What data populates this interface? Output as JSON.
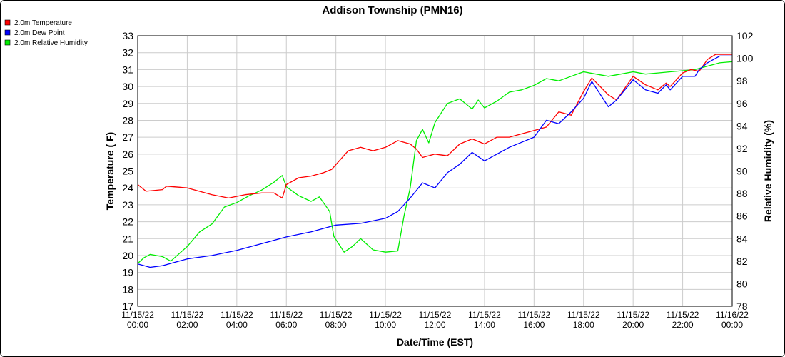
{
  "chart_data": {
    "type": "line",
    "title": "Addison Township (PMN16)",
    "xlabel": "Date/Time (EST)",
    "ylabel": "Temperature ( F)",
    "y2label": "Relative Humidity (%)",
    "ylim": [
      17,
      33
    ],
    "y2lim": [
      78,
      102
    ],
    "yticks": [
      17,
      18,
      19,
      20,
      21,
      22,
      23,
      24,
      25,
      26,
      27,
      28,
      29,
      30,
      31,
      32,
      33
    ],
    "y2ticks": [
      78,
      80,
      82,
      84,
      86,
      88,
      90,
      92,
      94,
      96,
      98,
      100,
      102
    ],
    "grid": true,
    "legend_placement": "top-left",
    "x_ticks": [
      {
        "date": "11/15/22",
        "time": "00:00"
      },
      {
        "date": "11/15/22",
        "time": "02:00"
      },
      {
        "date": "11/15/22",
        "time": "04:00"
      },
      {
        "date": "11/15/22",
        "time": "06:00"
      },
      {
        "date": "11/15/22",
        "time": "08:00"
      },
      {
        "date": "11/15/22",
        "time": "10:00"
      },
      {
        "date": "11/15/22",
        "time": "12:00"
      },
      {
        "date": "11/15/22",
        "time": "14:00"
      },
      {
        "date": "11/15/22",
        "time": "16:00"
      },
      {
        "date": "11/15/22",
        "time": "18:00"
      },
      {
        "date": "11/15/22",
        "time": "20:00"
      },
      {
        "date": "11/15/22",
        "time": "22:00"
      },
      {
        "date": "11/16/22",
        "time": "00:00"
      }
    ],
    "series": [
      {
        "name": "2.0m Temperature",
        "color": "#ff0000",
        "axis": "left",
        "x": [
          "11/15/22 00:00",
          "11/15/22 00:20",
          "11/15/22 01:00",
          "11/15/22 01:10",
          "11/15/22 02:00",
          "11/15/22 03:00",
          "11/15/22 03:40",
          "11/15/22 04:20",
          "11/15/22 05:00",
          "11/15/22 05:30",
          "11/15/22 05:50",
          "11/15/22 06:00",
          "11/15/22 06:30",
          "11/15/22 07:00",
          "11/15/22 07:30",
          "11/15/22 07:50",
          "11/15/22 08:30",
          "11/15/22 09:00",
          "11/15/22 09:30",
          "11/15/22 10:00",
          "11/15/22 10:30",
          "11/15/22 11:00",
          "11/15/22 11:15",
          "11/15/22 11:30",
          "11/15/22 12:00",
          "11/15/22 12:30",
          "11/15/22 13:00",
          "11/15/22 13:30",
          "11/15/22 14:00",
          "11/15/22 14:30",
          "11/15/22 15:00",
          "11/15/22 15:30",
          "11/15/22 16:00",
          "11/15/22 16:30",
          "11/15/22 17:00",
          "11/15/22 17:30",
          "11/15/22 18:00",
          "11/15/22 18:20",
          "11/15/22 19:00",
          "11/15/22 19:20",
          "11/15/22 20:00",
          "11/15/22 20:30",
          "11/15/22 21:00",
          "11/15/22 21:20",
          "11/15/22 21:30",
          "11/15/22 22:00",
          "11/15/22 22:20",
          "11/15/22 22:40",
          "11/15/22 23:00",
          "11/15/22 23:20",
          "11/15/22 23:40",
          "11/16/22 00:00"
        ],
        "values": [
          24.2,
          23.8,
          23.9,
          24.1,
          24.0,
          23.6,
          23.4,
          23.6,
          23.7,
          23.7,
          23.4,
          24.2,
          24.6,
          24.7,
          24.9,
          25.1,
          26.2,
          26.4,
          26.2,
          26.4,
          26.8,
          26.6,
          26.3,
          25.8,
          26.0,
          25.9,
          26.6,
          26.9,
          26.6,
          27.0,
          27.0,
          27.2,
          27.4,
          27.6,
          28.5,
          28.3,
          29.7,
          30.5,
          29.5,
          29.2,
          30.6,
          30.1,
          29.8,
          30.2,
          30.0,
          30.8,
          31.0,
          30.9,
          31.6,
          31.9,
          31.9,
          31.9
        ]
      },
      {
        "name": "2.0m Dew Point",
        "color": "#0000ff",
        "axis": "left",
        "x": [
          "11/15/22 00:00",
          "11/15/22 00:30",
          "11/15/22 01:00",
          "11/15/22 02:00",
          "11/15/22 03:00",
          "11/15/22 04:00",
          "11/15/22 05:00",
          "11/15/22 06:00",
          "11/15/22 07:00",
          "11/15/22 08:00",
          "11/15/22 09:00",
          "11/15/22 10:00",
          "11/15/22 10:30",
          "11/15/22 11:00",
          "11/15/22 11:30",
          "11/15/22 12:00",
          "11/15/22 12:30",
          "11/15/22 13:00",
          "11/15/22 13:30",
          "11/15/22 14:00",
          "11/15/22 14:30",
          "11/15/22 15:00",
          "11/15/22 15:30",
          "11/15/22 16:00",
          "11/15/22 16:30",
          "11/15/22 17:00",
          "11/15/22 17:30",
          "11/15/22 18:00",
          "11/15/22 18:20",
          "11/15/22 19:00",
          "11/15/22 19:20",
          "11/15/22 20:00",
          "11/15/22 20:30",
          "11/15/22 21:00",
          "11/15/22 21:20",
          "11/15/22 21:30",
          "11/15/22 22:00",
          "11/15/22 22:30",
          "11/15/22 22:40",
          "11/15/22 23:00",
          "11/15/22 23:30",
          "11/16/22 00:00"
        ],
        "values": [
          19.5,
          19.3,
          19.4,
          19.8,
          20.0,
          20.3,
          20.7,
          21.1,
          21.4,
          21.8,
          21.9,
          22.2,
          22.6,
          23.4,
          24.3,
          24.0,
          24.9,
          25.4,
          26.1,
          25.6,
          26.0,
          26.4,
          26.7,
          27.0,
          28.0,
          27.8,
          28.5,
          29.3,
          30.3,
          28.8,
          29.2,
          30.4,
          29.8,
          29.6,
          30.1,
          29.8,
          30.6,
          30.6,
          31.0,
          31.4,
          31.8,
          31.8
        ]
      },
      {
        "name": "2.0m Relative Humidity",
        "color": "#00ee00",
        "axis": "right",
        "x": [
          "11/15/22 00:00",
          "11/15/22 00:15",
          "11/15/22 00:30",
          "11/15/22 01:00",
          "11/15/22 01:20",
          "11/15/22 02:00",
          "11/15/22 02:30",
          "11/15/22 03:00",
          "11/15/22 03:30",
          "11/15/22 04:00",
          "11/15/22 04:30",
          "11/15/22 05:00",
          "11/15/22 05:30",
          "11/15/22 05:50",
          "11/15/22 06:00",
          "11/15/22 06:30",
          "11/15/22 07:00",
          "11/15/22 07:20",
          "11/15/22 07:45",
          "11/15/22 07:55",
          "11/15/22 08:20",
          "11/15/22 08:40",
          "11/15/22 09:00",
          "11/15/22 09:30",
          "11/15/22 10:00",
          "11/15/22 10:30",
          "11/15/22 10:45",
          "11/15/22 11:00",
          "11/15/22 11:15",
          "11/15/22 11:30",
          "11/15/22 11:45",
          "11/15/22 12:00",
          "11/15/22 12:30",
          "11/15/22 13:00",
          "11/15/22 13:30",
          "11/15/22 13:45",
          "11/15/22 14:00",
          "11/15/22 14:30",
          "11/15/22 15:00",
          "11/15/22 15:30",
          "11/15/22 16:00",
          "11/15/22 16:30",
          "11/15/22 17:00",
          "11/15/22 17:30",
          "11/15/22 18:00",
          "11/15/22 18:30",
          "11/15/22 19:00",
          "11/15/22 19:30",
          "11/15/22 20:00",
          "11/15/22 20:30",
          "11/15/22 21:00",
          "11/15/22 21:30",
          "11/15/22 22:00",
          "11/15/22 22:30",
          "11/15/22 23:00",
          "11/15/22 23:30",
          "11/16/22 00:00"
        ],
        "values": [
          81.8,
          82.3,
          82.6,
          82.4,
          82.0,
          83.3,
          84.6,
          85.3,
          86.8,
          87.2,
          87.8,
          88.3,
          89.0,
          89.6,
          88.6,
          87.8,
          87.3,
          87.7,
          86.4,
          84.2,
          82.8,
          83.3,
          84.0,
          83.0,
          82.8,
          82.9,
          86.0,
          88.5,
          92.7,
          93.7,
          92.5,
          94.3,
          96.0,
          96.4,
          95.5,
          96.3,
          95.6,
          96.2,
          97.0,
          97.2,
          97.6,
          98.2,
          98.0,
          98.4,
          98.8,
          98.6,
          98.4,
          98.6,
          98.8,
          98.6,
          98.7,
          98.8,
          98.9,
          99.0,
          99.3,
          99.6,
          99.7
        ]
      }
    ]
  }
}
